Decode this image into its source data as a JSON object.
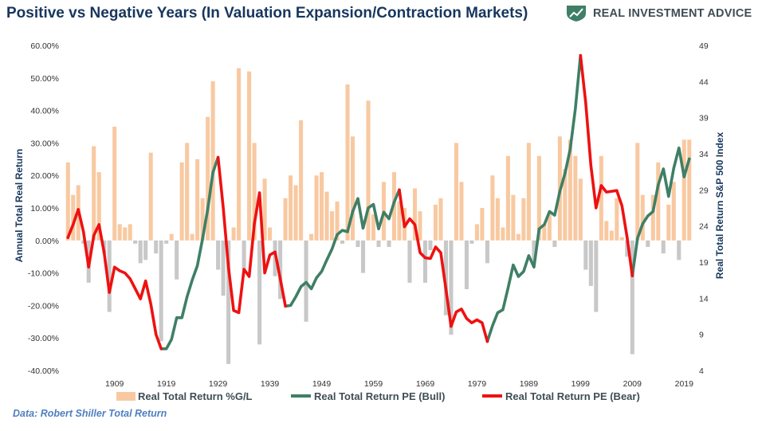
{
  "header": {
    "title": "Positive vs Negative Years (In Valuation Expansion/Contraction Markets)",
    "brand": "REAL INVESTMENT ADVICE",
    "brand_icon": "shield-chart-icon",
    "brand_color": "#3f7f66"
  },
  "footer": {
    "source": "Data: Robert Shiller Total Return"
  },
  "chart_data": {
    "type": "bar+line",
    "title": "Positive vs Negative Years (In Valuation Expansion/Contraction Markets)",
    "xlabel": "",
    "ylabel_left": "Annual Total Real Return",
    "ylabel_right": "Real Total Return S&P 500 Index",
    "ylim_left": [
      -0.4,
      0.6
    ],
    "ylim_right": [
      4,
      49
    ],
    "xlim": [
      1900,
      2021
    ],
    "x_ticks": [
      1909,
      1919,
      1929,
      1939,
      1949,
      1959,
      1969,
      1979,
      1989,
      1999,
      2009,
      2019
    ],
    "y_left_ticks": [
      "60.00%",
      "50.00%",
      "40.00%",
      "30.00%",
      "20.00%",
      "10.00%",
      "0.00%",
      "-10.00%",
      "-20.00%",
      "-30.00%",
      "-40.00%"
    ],
    "y_left_tick_values": [
      0.6,
      0.5,
      0.4,
      0.3,
      0.2,
      0.1,
      0.0,
      -0.1,
      -0.2,
      -0.3,
      -0.4
    ],
    "y_right_ticks": [
      "49",
      "44",
      "39",
      "34",
      "29",
      "24",
      "19",
      "14",
      "9",
      "4"
    ],
    "y_right_tick_values": [
      49,
      44,
      39,
      34,
      29,
      24,
      19,
      14,
      9,
      4
    ],
    "grid": false,
    "legend_position": "bottom",
    "colors": {
      "positive_bar": "#f8c9a1",
      "negative_bar": "#c8c8c8",
      "bull": "#3f7f66",
      "bear": "#ee1111"
    },
    "legend": [
      "Real Total Return %G/L",
      "Real Total Return PE (Bull)",
      "Real Total Return PE (Bear)"
    ],
    "bars": {
      "name": "Real Total Return %G/L",
      "years": [
        1900,
        1901,
        1902,
        1903,
        1904,
        1905,
        1906,
        1907,
        1908,
        1909,
        1910,
        1911,
        1912,
        1913,
        1914,
        1915,
        1916,
        1917,
        1918,
        1919,
        1920,
        1921,
        1922,
        1923,
        1924,
        1925,
        1926,
        1927,
        1928,
        1929,
        1930,
        1931,
        1932,
        1933,
        1934,
        1935,
        1936,
        1937,
        1938,
        1939,
        1940,
        1941,
        1942,
        1943,
        1944,
        1945,
        1946,
        1947,
        1948,
        1949,
        1950,
        1951,
        1952,
        1953,
        1954,
        1955,
        1956,
        1957,
        1958,
        1959,
        1960,
        1961,
        1962,
        1963,
        1964,
        1965,
        1966,
        1967,
        1968,
        1969,
        1970,
        1971,
        1972,
        1973,
        1974,
        1975,
        1976,
        1977,
        1978,
        1979,
        1980,
        1981,
        1982,
        1983,
        1984,
        1985,
        1986,
        1987,
        1988,
        1989,
        1990,
        1991,
        1992,
        1993,
        1994,
        1995,
        1996,
        1997,
        1998,
        1999,
        2000,
        2001,
        2002,
        2003,
        2004,
        2005,
        2006,
        2007,
        2008,
        2009,
        2010,
        2011,
        2012,
        2013,
        2014,
        2015,
        2016,
        2017,
        2018,
        2019,
        2020
      ],
      "values": [
        0.24,
        0.14,
        0.17,
        -0.01,
        -0.13,
        0.29,
        0.21,
        -0.04,
        -0.22,
        0.35,
        0.05,
        0.04,
        0.05,
        -0.01,
        -0.07,
        -0.06,
        0.27,
        -0.04,
        -0.31,
        -0.01,
        0.02,
        -0.12,
        0.24,
        0.3,
        0.02,
        0.25,
        0.13,
        0.38,
        0.49,
        -0.09,
        -0.17,
        -0.38,
        0.04,
        0.53,
        -0.09,
        0.52,
        0.3,
        -0.32,
        0.19,
        0.04,
        -0.11,
        -0.18,
        0.13,
        0.2,
        0.17,
        0.37,
        -0.25,
        0.02,
        0.2,
        0.21,
        0.15,
        0.09,
        0.12,
        -0.01,
        0.48,
        0.32,
        -0.02,
        -0.1,
        0.43,
        0.08,
        -0.02,
        0.18,
        -0.02,
        0.21,
        0.12,
        0.1,
        -0.13,
        0.16,
        0.09,
        -0.13,
        -0.03,
        0.11,
        0.13,
        -0.23,
        -0.29,
        0.3,
        0.18,
        -0.15,
        -0.01,
        0.05,
        0.1,
        -0.07,
        0.2,
        0.13,
        0.04,
        0.26,
        0.14,
        0.02,
        0.13,
        0.3,
        -0.07,
        0.26,
        0.05,
        0.08,
        -0.02,
        0.32,
        0.22,
        0.31,
        0.26,
        0.19,
        -0.09,
        -0.14,
        -0.22,
        0.26,
        0.06,
        0.03,
        0.13,
        0.01,
        -0.05,
        -0.35,
        0.3,
        0.14,
        -0.02,
        0.14,
        0.24,
        -0.04,
        0.11,
        0.18,
        -0.06,
        0.31,
        0.31
      ]
    },
    "series": [
      {
        "name": "Real Total Return PE (Bull)",
        "segments": [
          [
            [
              1918,
              7.0
            ],
            [
              1919,
              7.0
            ],
            [
              1920,
              8.3
            ],
            [
              1921,
              11.3
            ],
            [
              1922,
              11.3
            ],
            [
              1923,
              14.2
            ],
            [
              1924,
              16.5
            ],
            [
              1925,
              18.5
            ],
            [
              1926,
              22.2
            ],
            [
              1927,
              26.3
            ],
            [
              1928,
              31.4
            ],
            [
              1929,
              33.5
            ]
          ],
          [
            [
              1942,
              12.9
            ],
            [
              1943,
              13.0
            ],
            [
              1944,
              14.2
            ],
            [
              1945,
              15.6
            ],
            [
              1946,
              16.2
            ],
            [
              1947,
              15.3
            ],
            [
              1948,
              16.8
            ],
            [
              1949,
              17.7
            ],
            [
              1950,
              19.3
            ],
            [
              1951,
              20.8
            ],
            [
              1952,
              22.8
            ],
            [
              1953,
              23.4
            ],
            [
              1954,
              23.2
            ],
            [
              1955,
              26.0
            ],
            [
              1956,
              27.8
            ],
            [
              1957,
              23.7
            ],
            [
              1958,
              26.5
            ],
            [
              1959,
              27.0
            ],
            [
              1960,
              23.6
            ],
            [
              1961,
              25.9
            ],
            [
              1962,
              25.0
            ],
            [
              1963,
              27.3
            ],
            [
              1964,
              29.0
            ]
          ],
          [
            [
              1981,
              8.0
            ],
            [
              1982,
              10.2
            ],
            [
              1983,
              12.0
            ],
            [
              1984,
              12.4
            ],
            [
              1985,
              15.4
            ],
            [
              1986,
              18.6
            ],
            [
              1987,
              17.0
            ],
            [
              1988,
              17.7
            ],
            [
              1989,
              19.9
            ],
            [
              1990,
              18.3
            ],
            [
              1991,
              23.6
            ],
            [
              1992,
              24.2
            ],
            [
              1993,
              26.0
            ],
            [
              1994,
              25.5
            ],
            [
              1995,
              28.8
            ],
            [
              1996,
              31.3
            ],
            [
              1997,
              34.6
            ],
            [
              1998,
              40.2
            ],
            [
              1999,
              47.6
            ]
          ],
          [
            [
              2009,
              17.1
            ],
            [
              2010,
              22.3
            ],
            [
              2011,
              24.3
            ],
            [
              2012,
              25.4
            ],
            [
              2013,
              26.0
            ],
            [
              2014,
              29.7
            ],
            [
              2015,
              31.9
            ],
            [
              2016,
              28.1
            ],
            [
              2017,
              32.0
            ],
            [
              2018,
              34.8
            ],
            [
              2019,
              30.8
            ],
            [
              2020,
              33.3
            ]
          ]
        ]
      },
      {
        "name": "Real Total Return PE (Bear)",
        "segments": [
          [
            [
              1900,
              22.4
            ],
            [
              1901,
              24.2
            ],
            [
              1902,
              26.3
            ],
            [
              1903,
              23.2
            ],
            [
              1904,
              18.3
            ],
            [
              1905,
              22.7
            ],
            [
              1906,
              24.2
            ],
            [
              1907,
              20.3
            ],
            [
              1908,
              14.8
            ],
            [
              1909,
              18.3
            ],
            [
              1910,
              17.8
            ],
            [
              1911,
              17.5
            ],
            [
              1912,
              16.7
            ],
            [
              1913,
              15.3
            ],
            [
              1914,
              13.9
            ],
            [
              1915,
              16.4
            ],
            [
              1916,
              13.2
            ],
            [
              1917,
              9.0
            ],
            [
              1918,
              7.0
            ]
          ],
          [
            [
              1929,
              33.5
            ],
            [
              1930,
              26.5
            ],
            [
              1931,
              18.3
            ],
            [
              1932,
              12.3
            ],
            [
              1933,
              12.0
            ],
            [
              1934,
              18.0
            ],
            [
              1935,
              17.0
            ],
            [
              1936,
              24.3
            ],
            [
              1937,
              28.6
            ],
            [
              1938,
              17.5
            ],
            [
              1939,
              20.0
            ],
            [
              1940,
              20.4
            ],
            [
              1941,
              16.7
            ],
            [
              1942,
              12.9
            ]
          ],
          [
            [
              1964,
              29.0
            ],
            [
              1965,
              23.9
            ],
            [
              1966,
              25.0
            ],
            [
              1967,
              24.2
            ],
            [
              1968,
              20.3
            ],
            [
              1969,
              19.6
            ],
            [
              1970,
              19.5
            ],
            [
              1971,
              21.1
            ],
            [
              1972,
              20.3
            ],
            [
              1973,
              15.3
            ],
            [
              1974,
              10.1
            ],
            [
              1975,
              12.1
            ],
            [
              1976,
              12.5
            ],
            [
              1977,
              11.2
            ],
            [
              1978,
              10.6
            ],
            [
              1979,
              11.0
            ],
            [
              1980,
              10.6
            ],
            [
              1981,
              8.0
            ]
          ],
          [
            [
              1999,
              47.6
            ],
            [
              2000,
              41.1
            ],
            [
              2001,
              32.4
            ],
            [
              2002,
              26.5
            ],
            [
              2003,
              29.6
            ],
            [
              2004,
              28.7
            ],
            [
              2005,
              28.8
            ],
            [
              2006,
              28.9
            ],
            [
              2007,
              26.8
            ],
            [
              2008,
              22.4
            ],
            [
              2009,
              17.1
            ]
          ]
        ]
      }
    ]
  }
}
